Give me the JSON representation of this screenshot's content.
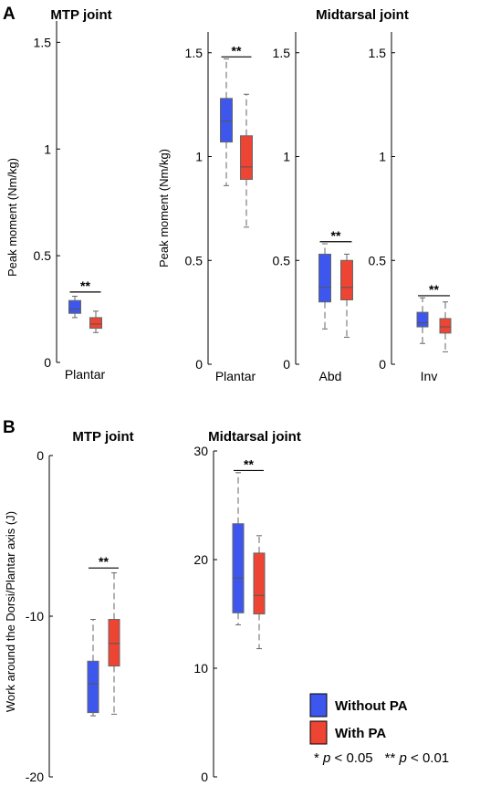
{
  "figure": {
    "panel_a_letter": "A",
    "panel_b_letter": "B"
  },
  "legend": {
    "items": [
      {
        "label": "Without PA",
        "color": "#3d57ee"
      },
      {
        "label": "With PA",
        "color": "#ee4433"
      }
    ],
    "footnote": {
      "p1_prefix": "* ",
      "p1_var": "p",
      "p1_rest": " < 0.05",
      "p2_prefix": "** ",
      "p2_var": "p",
      "p2_rest": " < 0.01"
    }
  },
  "colors": {
    "without_pa": "#3d57ee",
    "with_pa": "#ee4433",
    "whisker": "#666666",
    "axis": "#000000"
  },
  "chart_data": [
    {
      "id": "a-mtp",
      "type": "box",
      "title": "MTP joint",
      "ylabel": "Peak moment  (Nm/kg)",
      "ylim": [
        0,
        1.6
      ],
      "yticks": [
        0,
        0.5,
        1,
        1.5
      ],
      "ytick_labels": [
        "0",
        "0.5",
        "1",
        "1.5"
      ],
      "categories": [
        "Plantar"
      ],
      "series": [
        {
          "name": "Without PA",
          "boxes": [
            {
              "min": 0.21,
              "q1": 0.23,
              "median": 0.25,
              "q3": 0.29,
              "max": 0.31
            }
          ]
        },
        {
          "name": "With PA",
          "boxes": [
            {
              "min": 0.14,
              "q1": 0.16,
              "median": 0.18,
              "q3": 0.21,
              "max": 0.24
            }
          ]
        }
      ],
      "significance": [
        {
          "category": "Plantar",
          "label": "**",
          "y": 0.33
        }
      ]
    },
    {
      "id": "a-mid-plantar",
      "type": "box",
      "title": "",
      "ylabel": "Peak moment  (Nm/kg)",
      "ylim": [
        0,
        1.6
      ],
      "yticks": [
        0,
        0.5,
        1,
        1.5
      ],
      "ytick_labels": [
        "0",
        "0.5",
        "1",
        "1.5"
      ],
      "categories": [
        "Plantar"
      ],
      "series": [
        {
          "name": "Without PA",
          "boxes": [
            {
              "min": 0.86,
              "q1": 1.07,
              "median": 1.17,
              "q3": 1.28,
              "max": 1.47
            }
          ]
        },
        {
          "name": "With PA",
          "boxes": [
            {
              "min": 0.66,
              "q1": 0.89,
              "median": 0.95,
              "q3": 1.1,
              "max": 1.3
            }
          ]
        }
      ],
      "significance": [
        {
          "category": "Plantar",
          "label": "**",
          "y": 1.48
        }
      ]
    },
    {
      "id": "a-mid-abd",
      "type": "box",
      "title": "Midtarsal joint",
      "ylabel": "",
      "ylim": [
        0,
        1.6
      ],
      "yticks": [
        0,
        0.5,
        1,
        1.5
      ],
      "ytick_labels": [
        "0",
        "0.5",
        "1",
        "1.5"
      ],
      "categories": [
        "Abd"
      ],
      "series": [
        {
          "name": "Without PA",
          "boxes": [
            {
              "min": 0.17,
              "q1": 0.3,
              "median": 0.37,
              "q3": 0.53,
              "max": 0.58
            }
          ]
        },
        {
          "name": "With PA",
          "boxes": [
            {
              "min": 0.13,
              "q1": 0.31,
              "median": 0.37,
              "q3": 0.5,
              "max": 0.53
            }
          ]
        }
      ],
      "significance": [
        {
          "category": "Abd",
          "label": "**",
          "y": 0.59
        }
      ]
    },
    {
      "id": "a-mid-inv",
      "type": "box",
      "title": "",
      "ylabel": "",
      "ylim": [
        0,
        1.6
      ],
      "yticks": [
        0,
        0.5,
        1,
        1.5
      ],
      "ytick_labels": [
        "0",
        "0.5",
        "1",
        "1.5"
      ],
      "categories": [
        "Inv"
      ],
      "series": [
        {
          "name": "Without PA",
          "boxes": [
            {
              "min": 0.1,
              "q1": 0.18,
              "median": 0.2,
              "q3": 0.25,
              "max": 0.32
            }
          ]
        },
        {
          "name": "With PA",
          "boxes": [
            {
              "min": 0.06,
              "q1": 0.15,
              "median": 0.18,
              "q3": 0.22,
              "max": 0.3
            }
          ]
        }
      ],
      "significance": [
        {
          "category": "Inv",
          "label": "**",
          "y": 0.33
        }
      ]
    },
    {
      "id": "b-mtp",
      "type": "box",
      "title": "MTP joint",
      "ylabel": "Work around the Dorsi/Plantar axis (J)",
      "ylim": [
        -20,
        0
      ],
      "yticks": [
        -20,
        -10,
        0
      ],
      "ytick_labels": [
        "-20",
        "-10",
        "0"
      ],
      "categories": [
        ""
      ],
      "series": [
        {
          "name": "Without PA",
          "boxes": [
            {
              "min": -16.2,
              "q1": -16.0,
              "median": -14.2,
              "q3": -12.8,
              "max": -10.2
            }
          ]
        },
        {
          "name": "With PA",
          "boxes": [
            {
              "min": -16.1,
              "q1": -13.1,
              "median": -11.7,
              "q3": -10.2,
              "max": -7.3
            }
          ]
        }
      ],
      "significance": [
        {
          "category": "",
          "label": "**",
          "y": -7.0
        }
      ]
    },
    {
      "id": "b-mid",
      "type": "box",
      "title": "Midtarsal joint",
      "ylabel": "",
      "ylim": [
        0,
        30
      ],
      "yticks": [
        0,
        10,
        20,
        30
      ],
      "ytick_labels": [
        "0",
        "10",
        "20",
        "30"
      ],
      "categories": [
        ""
      ],
      "series": [
        {
          "name": "Without PA",
          "boxes": [
            {
              "min": 14.0,
              "q1": 15.1,
              "median": 18.3,
              "q3": 23.3,
              "max": 28.0
            }
          ]
        },
        {
          "name": "With PA",
          "boxes": [
            {
              "min": 11.8,
              "q1": 15.0,
              "median": 16.7,
              "q3": 20.6,
              "max": 22.2
            }
          ]
        }
      ],
      "significance": [
        {
          "category": "",
          "label": "**",
          "y": 28.2
        }
      ]
    }
  ]
}
